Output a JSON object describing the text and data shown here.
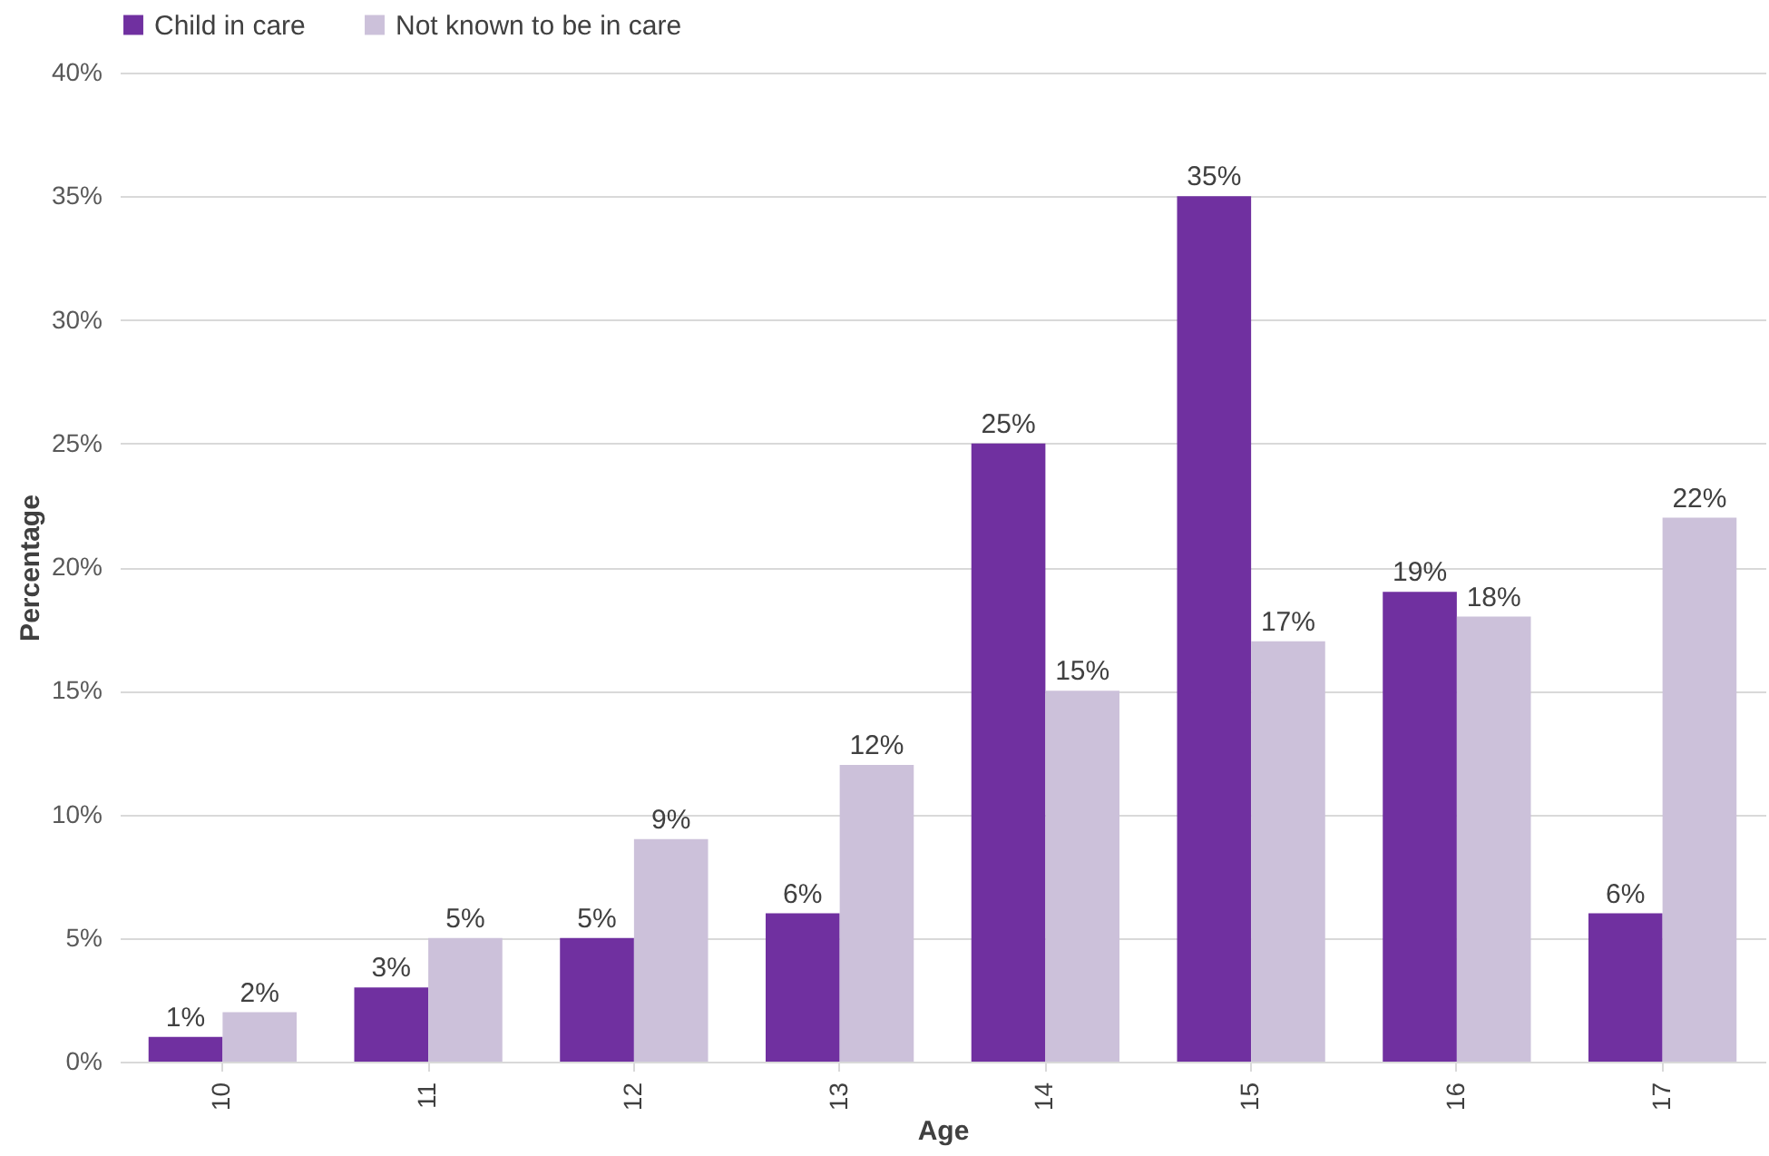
{
  "chart_data": {
    "type": "bar",
    "xlabel": "Age",
    "ylabel": "Percentage",
    "categories": [
      "10",
      "11",
      "12",
      "13",
      "14",
      "15",
      "16",
      "17"
    ],
    "series": [
      {
        "name": "Child in care",
        "color": "#7030a0",
        "values": [
          1,
          3,
          5,
          6,
          25,
          35,
          19,
          6
        ],
        "value_labels": [
          "1%",
          "3%",
          "5%",
          "6%",
          "25%",
          "35%",
          "19%",
          "6%"
        ]
      },
      {
        "name": "Not known to be in care",
        "color": "#ccc1da",
        "values": [
          2,
          5,
          9,
          12,
          15,
          17,
          18,
          22
        ],
        "value_labels": [
          "2%",
          "5%",
          "9%",
          "12%",
          "15%",
          "17%",
          "18%",
          "22%"
        ]
      }
    ],
    "ylim": [
      0,
      40
    ],
    "yticks": [
      {
        "value": 0,
        "label": "0%"
      },
      {
        "value": 5,
        "label": "5%"
      },
      {
        "value": 10,
        "label": "10%"
      },
      {
        "value": 15,
        "label": "15%"
      },
      {
        "value": 20,
        "label": "20%"
      },
      {
        "value": 25,
        "label": "25%"
      },
      {
        "value": 30,
        "label": "30%"
      },
      {
        "value": 35,
        "label": "35%"
      },
      {
        "value": 40,
        "label": "40%"
      }
    ],
    "grid": "y",
    "legend": "top"
  }
}
